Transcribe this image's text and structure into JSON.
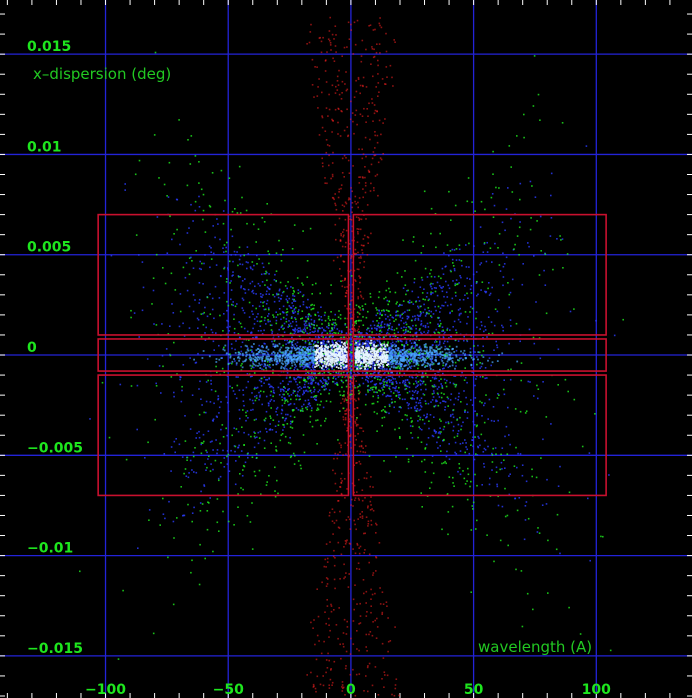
{
  "chart_data": {
    "type": "scatter",
    "xlabel": "wavelength (A)",
    "ylabel": "x–dispersion (deg)",
    "xlim": [
      -143,
      139
    ],
    "ylim": [
      -0.0171,
      0.0177
    ],
    "x_ticks": [
      -100,
      -50,
      0,
      50,
      100
    ],
    "x_tick_labels": [
      "−100",
      "−50",
      "0",
      "50",
      "100"
    ],
    "y_ticks": [
      0.015,
      0.01,
      0.005,
      0,
      -0.005,
      -0.01,
      -0.015
    ],
    "y_tick_labels": [
      "0.015",
      "0.01",
      "0.005",
      "0",
      "−0.005",
      "−0.01",
      "−0.015"
    ],
    "grid": true,
    "regions": [
      {
        "x": [
          -103,
          -1
        ],
        "y": [
          0.001,
          0.007
        ]
      },
      {
        "x": [
          1,
          104
        ],
        "y": [
          0.001,
          0.007
        ]
      },
      {
        "x": [
          -103,
          -1
        ],
        "y": [
          -0.0008,
          0.0008
        ]
      },
      {
        "x": [
          1,
          104
        ],
        "y": [
          -0.0008,
          0.0008
        ]
      },
      {
        "x": [
          -103,
          -1
        ],
        "y": [
          -0.007,
          -0.001
        ]
      },
      {
        "x": [
          1,
          104
        ],
        "y": [
          -0.007,
          -0.001
        ]
      }
    ],
    "series": [
      {
        "color": "#ff2020",
        "description_points": "fan of rays near zero order",
        "x_spread": 12,
        "y_spread": 0.017
      },
      {
        "color": "#2a3cff",
        "description_points": "dispersed spectrum",
        "x_spread": 60,
        "y_spread": 0.005
      },
      {
        "color": "#20ff20",
        "description_points": "dispersed spectrum",
        "x_spread": 60,
        "y_spread": 0.01
      }
    ],
    "colors": {
      "background": "#000000",
      "grid": "#2323d8",
      "tick_labels": "#1ee61e",
      "axis_labels": "#22c822",
      "regions": "#c8102e",
      "core": "#e8f6ff"
    }
  }
}
